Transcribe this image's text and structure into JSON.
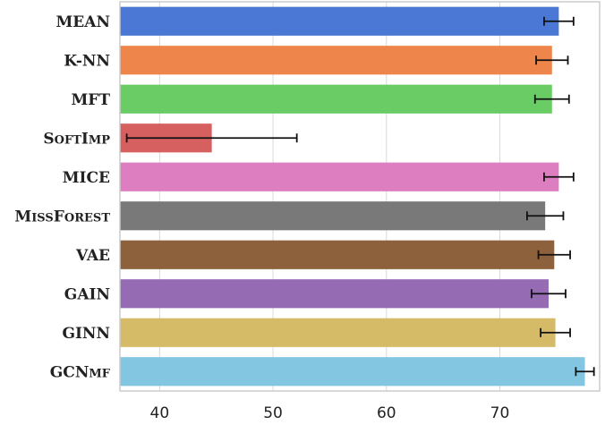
{
  "chart_data": {
    "type": "bar",
    "orientation": "horizontal",
    "title": "",
    "xlabel": "",
    "ylabel": "",
    "xlim": [
      36.5,
      78.8
    ],
    "xticks": [
      40,
      50,
      60,
      70
    ],
    "grid": true,
    "categories": [
      {
        "label": "MEAN",
        "smallcaps": false
      },
      {
        "label": "K-NN",
        "smallcaps": false
      },
      {
        "label": "MFT",
        "smallcaps": false
      },
      {
        "label": "SoftImp",
        "smallcaps": true
      },
      {
        "label": "MICE",
        "smallcaps": false
      },
      {
        "label": "MissForest",
        "smallcaps": true
      },
      {
        "label": "VAE",
        "smallcaps": false
      },
      {
        "label": "GAIN",
        "smallcaps": false
      },
      {
        "label": "GINN",
        "smallcaps": false
      },
      {
        "label": "GCNmf",
        "smallcaps": true
      }
    ],
    "values": [
      75.2,
      74.6,
      74.6,
      44.6,
      75.2,
      74.0,
      74.8,
      74.3,
      74.9,
      77.5
    ],
    "errors": [
      1.3,
      1.4,
      1.5,
      7.5,
      1.3,
      1.6,
      1.4,
      1.5,
      1.3,
      0.8
    ],
    "colors": [
      "#4a78d4",
      "#ee854a",
      "#6acc64",
      "#d65f5f",
      "#dc7ec0",
      "#797979",
      "#8c613c",
      "#956cb4",
      "#d5bb67",
      "#82c6e2"
    ]
  }
}
